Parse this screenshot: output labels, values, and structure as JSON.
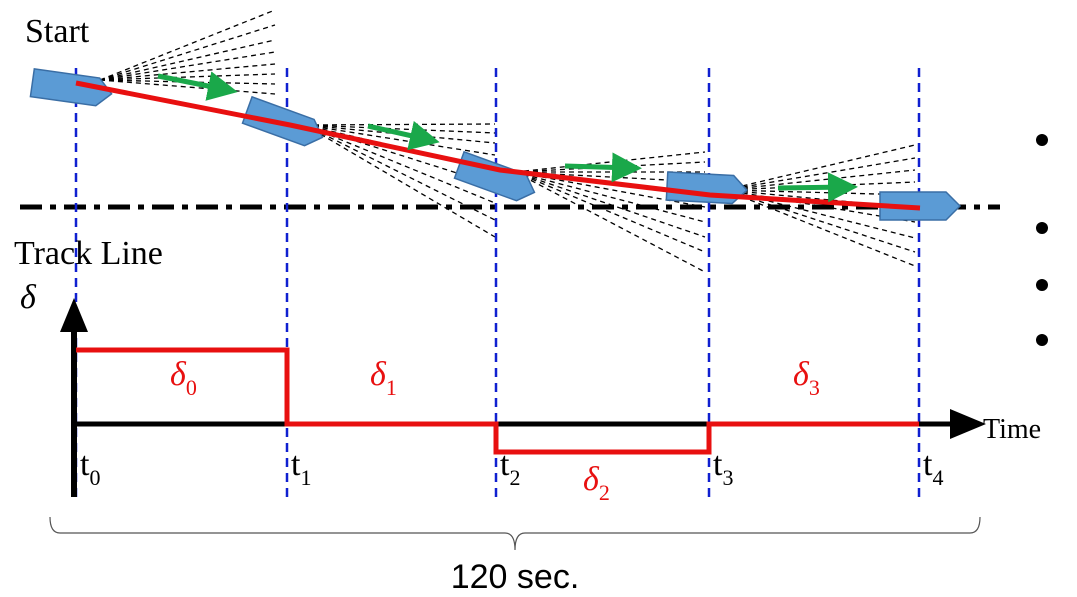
{
  "labels": {
    "start": "Start",
    "track_line": "Track Line",
    "y_axis": "δ",
    "x_axis": "Time",
    "duration": "120 sec."
  },
  "steering": [
    {
      "symbol": "δ",
      "sub": "0"
    },
    {
      "symbol": "δ",
      "sub": "1"
    },
    {
      "symbol": "δ",
      "sub": "2"
    },
    {
      "symbol": "δ",
      "sub": "3"
    }
  ],
  "times": [
    {
      "symbol": "t",
      "sub": "0"
    },
    {
      "symbol": "t",
      "sub": "1"
    },
    {
      "symbol": "t",
      "sub": "2"
    },
    {
      "symbol": "t",
      "sub": "3"
    },
    {
      "symbol": "t",
      "sub": "4"
    }
  ]
}
